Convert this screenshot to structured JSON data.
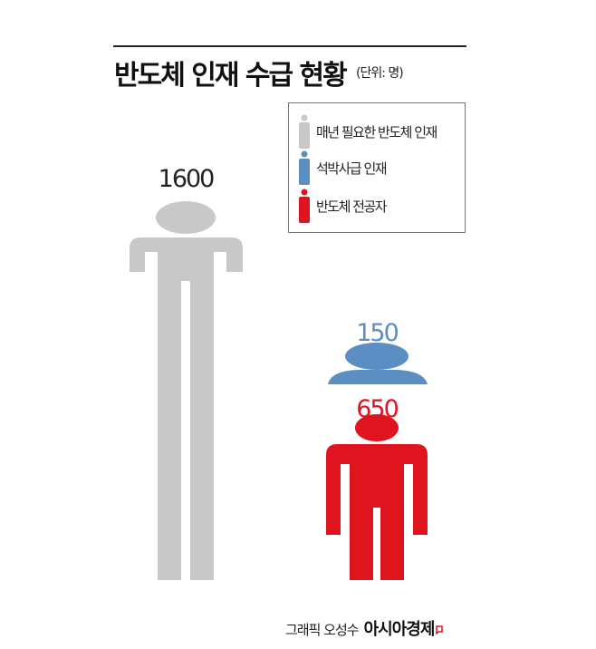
{
  "title": "반도체 인재 수급 현황",
  "unit": "(단위: 명)",
  "chart_data": {
    "type": "pictogram",
    "title": "반도체 인재 수급 현황",
    "unit": "(단위: 명)",
    "legend_position": "top-right",
    "series": [
      {
        "name": "매년 필요한 반도체 인재",
        "value": 1600,
        "label": "1600",
        "color": "#c8c8c8"
      },
      {
        "name": "석박사급 인재",
        "value": 150,
        "label": "150",
        "color": "#5b8fc4"
      },
      {
        "name": "반도체 전공자",
        "value": 650,
        "label": "650",
        "color": "#e0141e"
      }
    ]
  },
  "credit": {
    "author": "그래픽 오성수",
    "brand": "아시아경제",
    "brand_color": "#e0141e"
  }
}
